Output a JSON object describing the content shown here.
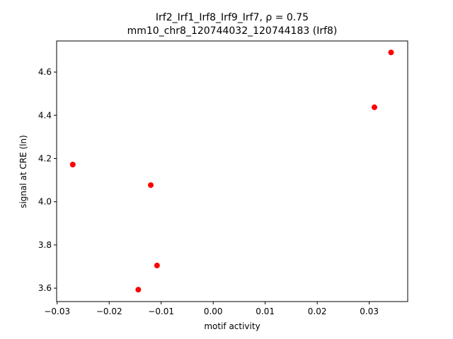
{
  "chart_data": {
    "type": "scatter",
    "title": "Irf2_Irf1_Irf8_Irf9_Irf7, ρ = 0.75",
    "subtitle": "mm10_chr8_120744032_120744183 (Irf8)",
    "x_label": "motif activity",
    "y_label": "signal at CRE (ln)",
    "x": [
      -0.027,
      -0.012,
      -0.0108,
      -0.0144,
      0.031,
      0.0342
    ],
    "series": [
      {
        "name": "CRE",
        "color": "#ff0000",
        "values": [
          4.172,
          4.077,
          3.705,
          3.593,
          4.437,
          4.691
        ]
      }
    ],
    "xlim": [
      -0.0301,
      0.0374
    ],
    "ylim": [
      3.538,
      4.744
    ],
    "xticks": [
      {
        "value": -0.03,
        "label": "−0.03"
      },
      {
        "value": -0.02,
        "label": "−0.02"
      },
      {
        "value": -0.01,
        "label": "−0.01"
      },
      {
        "value": 0,
        "label": "0.00"
      },
      0.01,
      0.02,
      0.03
    ],
    "yticks": [
      3.6,
      3.8,
      {
        "value": 4.0,
        "label": "4.0"
      },
      4.2,
      4.4,
      4.6
    ],
    "grid": false
  }
}
